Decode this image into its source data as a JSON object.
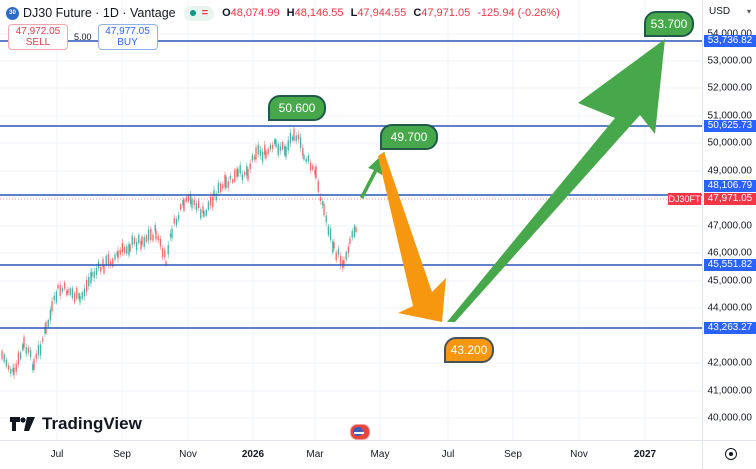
{
  "header": {
    "symbol_logo": "30",
    "title": "DJ30 Future · 1D · Vantage",
    "status_icon": "market-open-dot",
    "ohlc": {
      "open_label": "O",
      "open": "48,074.99",
      "high_label": "H",
      "high": "48,146.55",
      "low_label": "L",
      "low": "47,944.55",
      "close_label": "C",
      "close": "47,971.05",
      "change": "-125.94 (-0.26%)"
    }
  },
  "trade": {
    "sell_price": "47,972.05",
    "sell_label": "SELL",
    "spread": "5.00",
    "buy_price": "47,977.05",
    "buy_label": "BUY"
  },
  "price_axis": {
    "currency": "USD",
    "ticks": [
      "54,000.00",
      "53,000.00",
      "52,000.00",
      "51,000.00",
      "50,000.00",
      "49,000.00",
      "47,000.00",
      "46,000.00",
      "45,000.00",
      "44,000.00",
      "42,000.00",
      "41,000.00",
      "40,000.00"
    ],
    "level_labels": [
      "53,736.82",
      "50,625.73",
      "48,106.79",
      "45,551.82",
      "43,263.27"
    ],
    "current_price": "47,971.05",
    "symbol_tag": "DJ30FT"
  },
  "time_axis": {
    "labels": [
      "Jul",
      "Sep",
      "Nov",
      "2026",
      "Mar",
      "May",
      "Jul",
      "Sep",
      "Nov",
      "2027"
    ],
    "bold": [
      "2026",
      "2027"
    ]
  },
  "annotations": {
    "peak_target": "50.600",
    "short_target": "49.700",
    "down_target": "43.200",
    "long_target": "53.700"
  },
  "branding": {
    "logo_text": "TradingView"
  },
  "colors": {
    "level_line": "#2a55b8",
    "up_candle": "#26a69a",
    "down_candle": "#ef5350",
    "green_arrow": "#47a84b",
    "orange_arrow": "#f7960f",
    "price_label": "#2962ff",
    "current_price": "#f23645"
  }
}
